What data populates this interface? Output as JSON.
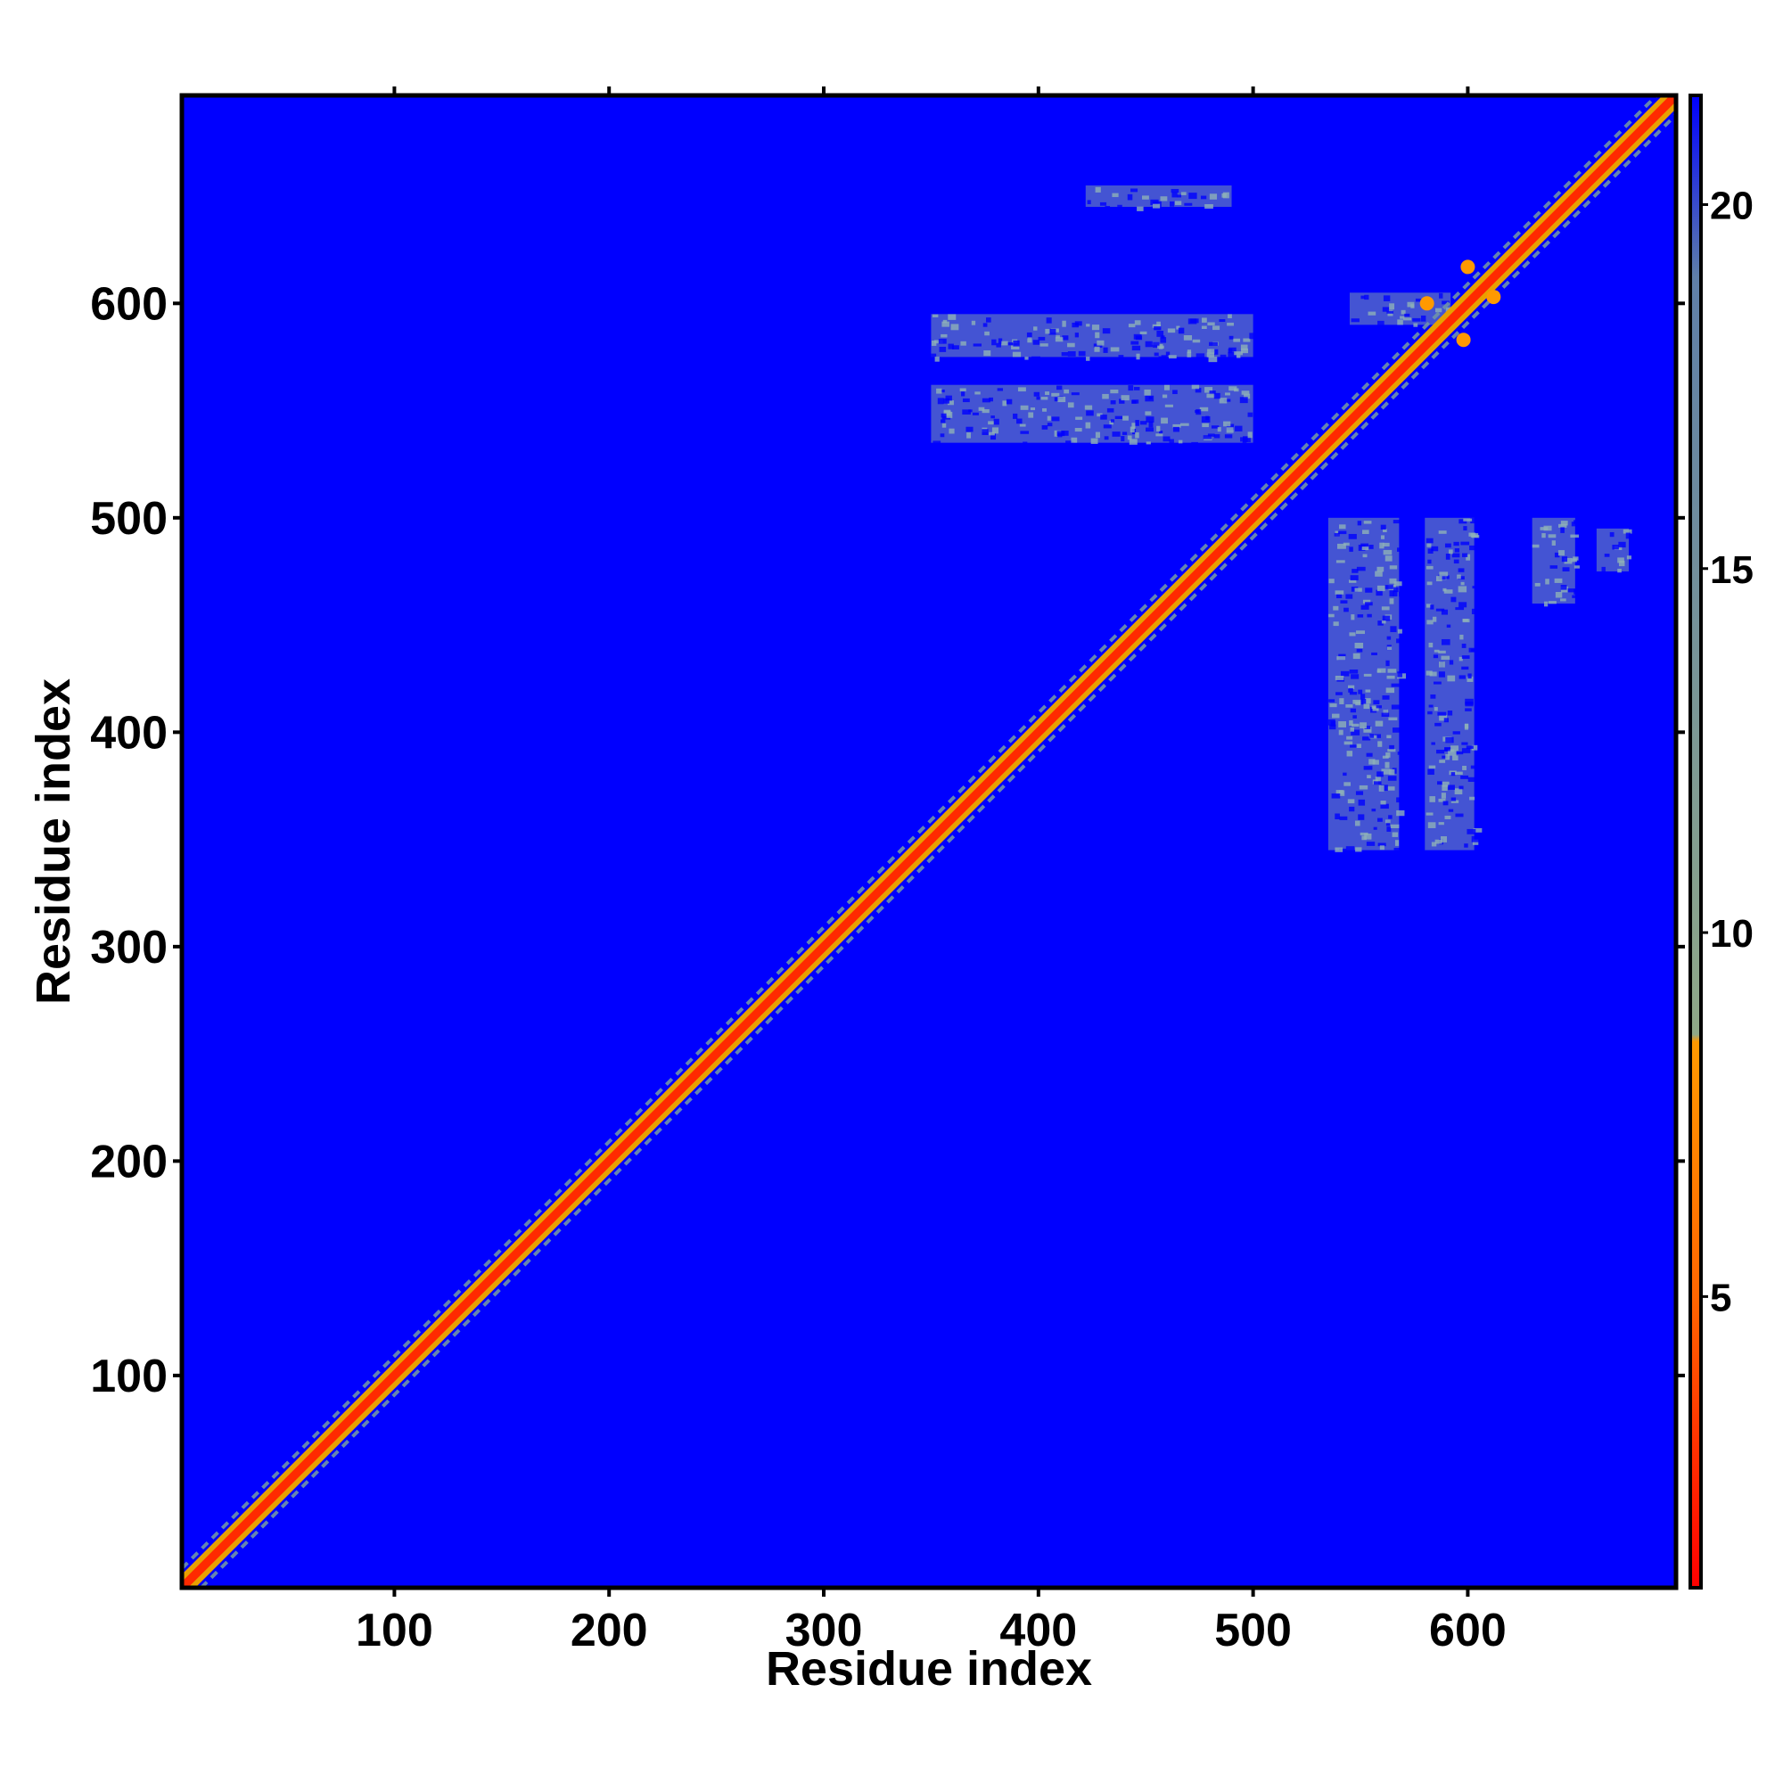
{
  "chart_data": {
    "type": "heatmap",
    "title": "",
    "xlabel": "Residue index",
    "ylabel": "Residue index",
    "xlim": [
      1,
      697
    ],
    "ylim": [
      1,
      697
    ],
    "x_ticks": [
      100,
      200,
      300,
      400,
      500,
      600
    ],
    "y_ticks": [
      100,
      200,
      300,
      400,
      500,
      600
    ],
    "colorbar": {
      "range": [
        1,
        21.5
      ],
      "ticks": [
        5,
        10,
        15,
        20
      ],
      "colors": [
        {
          "value": 1,
          "color": "#ff0000"
        },
        {
          "value": 5,
          "color": "#ff6600"
        },
        {
          "value": 8.5,
          "color": "#ff9900"
        },
        {
          "value": 8.6,
          "color": "#8fa888"
        },
        {
          "value": 19,
          "color": "#5f7fa8"
        },
        {
          "value": 21.5,
          "color": "#0000ff"
        }
      ]
    },
    "background_value": 21.5,
    "background_color": "#0000ff",
    "diagonal": {
      "from": 1,
      "to": 697,
      "value": 3,
      "color": "#ff2a00",
      "halo_color": "#e8a000",
      "width_residues": 4
    },
    "near_diagonal_contacts": {
      "offset_residues": 9,
      "value": 18,
      "color": "#6f93a9"
    },
    "contact_patches": [
      {
        "x_range": [
          350,
          500
        ],
        "y_range": [
          575,
          595
        ],
        "value": 17,
        "color": "#7b99ae"
      },
      {
        "x_range": [
          350,
          500
        ],
        "y_range": [
          535,
          562
        ],
        "value": 17,
        "color": "#7b99ae"
      },
      {
        "x_range": [
          535,
          568
        ],
        "y_range": [
          345,
          500
        ],
        "value": 17,
        "color": "#7b99ae"
      },
      {
        "x_range": [
          580,
          603
        ],
        "y_range": [
          345,
          500
        ],
        "value": 17,
        "color": "#7b99ae"
      },
      {
        "x_range": [
          545,
          592
        ],
        "y_range": [
          590,
          605
        ],
        "value": 17,
        "color": "#7b99ae"
      },
      {
        "x_range": [
          422,
          490
        ],
        "y_range": [
          645,
          655
        ],
        "value": 18,
        "color": "#7b99ae"
      },
      {
        "x_range": [
          630,
          650
        ],
        "y_range": [
          460,
          500
        ],
        "value": 18,
        "color": "#7b99ae"
      },
      {
        "x_range": [
          660,
          675
        ],
        "y_range": [
          475,
          495
        ],
        "value": 18,
        "color": "#7b99ae"
      }
    ],
    "close_contacts": [
      {
        "x": 581,
        "y": 600,
        "value": 7,
        "color": "#ff9900"
      },
      {
        "x": 600,
        "y": 617,
        "value": 7,
        "color": "#ff9900"
      },
      {
        "x": 612,
        "y": 603,
        "value": 7,
        "color": "#ff9900"
      },
      {
        "x": 598,
        "y": 583,
        "value": 7,
        "color": "#ff9900"
      }
    ]
  }
}
